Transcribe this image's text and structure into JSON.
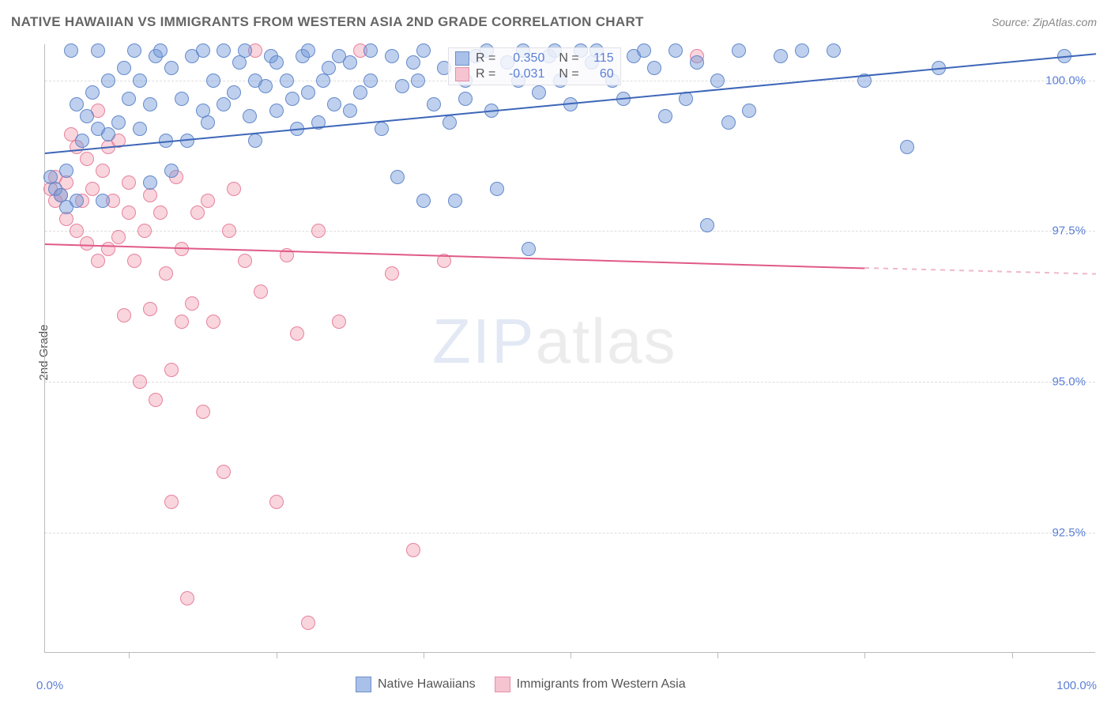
{
  "title": "NATIVE HAWAIIAN VS IMMIGRANTS FROM WESTERN ASIA 2ND GRADE CORRELATION CHART",
  "source": "Source: ZipAtlas.com",
  "ylabel": "2nd Grade",
  "watermark": {
    "zip": "ZIP",
    "atlas": "atlas"
  },
  "chart": {
    "type": "scatter",
    "xlim": [
      0,
      100
    ],
    "ylim": [
      90.5,
      100.6
    ],
    "yticks": [
      92.5,
      95.0,
      97.5,
      100.0
    ],
    "ytick_labels": [
      "92.5%",
      "95.0%",
      "97.5%",
      "100.0%"
    ],
    "xtick_marks": [
      8,
      22,
      36,
      50,
      64,
      78,
      92
    ],
    "xaxis_labels": {
      "left": "0.0%",
      "right": "100.0%"
    },
    "background_color": "#ffffff",
    "grid_color": "#dddddd",
    "marker_radius": 9,
    "series_a": {
      "name": "Native Hawaiians",
      "fill": "rgba(110,150,215,0.45)",
      "stroke": "#5a82c8",
      "swatch_fill": "#a9c0e8",
      "swatch_border": "#6f8fc8",
      "R": "0.350",
      "N": "115",
      "trend": {
        "x0": 0,
        "y0": 98.8,
        "x1": 100,
        "y1": 100.45,
        "color": "#3e66b8",
        "width": 2,
        "dash": false
      },
      "points": [
        [
          0.5,
          98.4
        ],
        [
          1,
          98.2
        ],
        [
          1.5,
          98.1
        ],
        [
          2,
          98.5
        ],
        [
          2,
          97.9
        ],
        [
          2.5,
          100.5
        ],
        [
          3,
          99.6
        ],
        [
          3,
          98.0
        ],
        [
          3.5,
          99.0
        ],
        [
          4,
          99.4
        ],
        [
          4.5,
          99.8
        ],
        [
          5,
          100.5
        ],
        [
          5,
          99.2
        ],
        [
          5.5,
          98.0
        ],
        [
          6,
          100.0
        ],
        [
          6,
          99.1
        ],
        [
          7,
          99.3
        ],
        [
          7.5,
          100.2
        ],
        [
          8,
          99.7
        ],
        [
          8.5,
          100.5
        ],
        [
          9,
          99.2
        ],
        [
          9,
          100.0
        ],
        [
          10,
          98.3
        ],
        [
          10,
          99.6
        ],
        [
          10.5,
          100.4
        ],
        [
          11,
          100.5
        ],
        [
          11.5,
          99.0
        ],
        [
          12,
          98.5
        ],
        [
          12,
          100.2
        ],
        [
          13,
          99.7
        ],
        [
          13.5,
          99.0
        ],
        [
          14,
          100.4
        ],
        [
          15,
          100.5
        ],
        [
          15,
          99.5
        ],
        [
          15.5,
          99.3
        ],
        [
          16,
          100.0
        ],
        [
          17,
          99.6
        ],
        [
          17,
          100.5
        ],
        [
          18,
          99.8
        ],
        [
          18.5,
          100.3
        ],
        [
          19,
          100.5
        ],
        [
          19.5,
          99.4
        ],
        [
          20,
          100.0
        ],
        [
          20,
          99.0
        ],
        [
          21,
          99.9
        ],
        [
          21.5,
          100.4
        ],
        [
          22,
          100.3
        ],
        [
          22,
          99.5
        ],
        [
          23,
          100.0
        ],
        [
          23.5,
          99.7
        ],
        [
          24,
          99.2
        ],
        [
          24.5,
          100.4
        ],
        [
          25,
          99.8
        ],
        [
          25,
          100.5
        ],
        [
          26,
          99.3
        ],
        [
          26.5,
          100.0
        ],
        [
          27,
          100.2
        ],
        [
          27.5,
          99.6
        ],
        [
          28,
          100.4
        ],
        [
          29,
          99.5
        ],
        [
          29,
          100.3
        ],
        [
          30,
          99.8
        ],
        [
          31,
          100.5
        ],
        [
          31,
          100.0
        ],
        [
          32,
          99.2
        ],
        [
          33,
          100.4
        ],
        [
          33.5,
          98.4
        ],
        [
          34,
          99.9
        ],
        [
          35,
          100.3
        ],
        [
          35.5,
          100.0
        ],
        [
          36,
          98.0
        ],
        [
          36,
          100.5
        ],
        [
          37,
          99.6
        ],
        [
          38,
          100.2
        ],
        [
          38.5,
          99.3
        ],
        [
          39,
          98.0
        ],
        [
          40,
          100.0
        ],
        [
          40,
          99.7
        ],
        [
          41,
          100.4
        ],
        [
          42,
          100.5
        ],
        [
          42.5,
          99.5
        ],
        [
          43,
          98.2
        ],
        [
          44,
          100.3
        ],
        [
          45,
          100.0
        ],
        [
          45.5,
          100.5
        ],
        [
          46,
          97.2
        ],
        [
          47,
          99.8
        ],
        [
          48,
          100.4
        ],
        [
          48.5,
          100.5
        ],
        [
          49,
          100.0
        ],
        [
          50,
          99.6
        ],
        [
          51,
          100.5
        ],
        [
          52,
          100.3
        ],
        [
          52.5,
          100.5
        ],
        [
          54,
          100.0
        ],
        [
          55,
          99.7
        ],
        [
          56,
          100.4
        ],
        [
          57,
          100.5
        ],
        [
          58,
          100.2
        ],
        [
          59,
          99.4
        ],
        [
          60,
          100.5
        ],
        [
          61,
          99.7
        ],
        [
          62,
          100.3
        ],
        [
          63,
          97.6
        ],
        [
          64,
          100.0
        ],
        [
          65,
          99.3
        ],
        [
          66,
          100.5
        ],
        [
          67,
          99.5
        ],
        [
          70,
          100.4
        ],
        [
          72,
          100.5
        ],
        [
          75,
          100.5
        ],
        [
          78,
          100.0
        ],
        [
          82,
          98.9
        ],
        [
          85,
          100.2
        ],
        [
          97,
          100.4
        ]
      ]
    },
    "series_b": {
      "name": "Immigrants from Western Asia",
      "fill": "rgba(240,150,170,0.40)",
      "stroke": "#e47896",
      "swatch_fill": "#f5c4d0",
      "swatch_border": "#e58fa8",
      "R": "-0.031",
      "N": "60",
      "trend_solid": {
        "x0": 0,
        "y0": 97.3,
        "x1": 78,
        "y1": 96.9,
        "color": "#e05a88",
        "width": 2
      },
      "trend_dash": {
        "x0": 78,
        "y0": 96.9,
        "x1": 100,
        "y1": 96.8,
        "color": "#f0b8c8",
        "width": 2
      },
      "points": [
        [
          0.5,
          98.2
        ],
        [
          1,
          98.4
        ],
        [
          1,
          98.0
        ],
        [
          1.5,
          98.1
        ],
        [
          2,
          97.7
        ],
        [
          2,
          98.3
        ],
        [
          2.5,
          99.1
        ],
        [
          3,
          98.9
        ],
        [
          3,
          97.5
        ],
        [
          3.5,
          98.0
        ],
        [
          4,
          98.7
        ],
        [
          4,
          97.3
        ],
        [
          4.5,
          98.2
        ],
        [
          5,
          99.5
        ],
        [
          5,
          97.0
        ],
        [
          5.5,
          98.5
        ],
        [
          6,
          98.9
        ],
        [
          6,
          97.2
        ],
        [
          6.5,
          98.0
        ],
        [
          7,
          97.4
        ],
        [
          7,
          99.0
        ],
        [
          7.5,
          96.1
        ],
        [
          8,
          97.8
        ],
        [
          8,
          98.3
        ],
        [
          8.5,
          97.0
        ],
        [
          9,
          95.0
        ],
        [
          9.5,
          97.5
        ],
        [
          10,
          96.2
        ],
        [
          10,
          98.1
        ],
        [
          10.5,
          94.7
        ],
        [
          11,
          97.8
        ],
        [
          11.5,
          96.8
        ],
        [
          12,
          95.2
        ],
        [
          12,
          93.0
        ],
        [
          12.5,
          98.4
        ],
        [
          13,
          97.2
        ],
        [
          13,
          96.0
        ],
        [
          13.5,
          91.4
        ],
        [
          14,
          96.3
        ],
        [
          14.5,
          97.8
        ],
        [
          15,
          94.5
        ],
        [
          15.5,
          98.0
        ],
        [
          16,
          96.0
        ],
        [
          17,
          93.5
        ],
        [
          17.5,
          97.5
        ],
        [
          18,
          98.2
        ],
        [
          19,
          97.0
        ],
        [
          20,
          100.5
        ],
        [
          20.5,
          96.5
        ],
        [
          22,
          93.0
        ],
        [
          23,
          97.1
        ],
        [
          24,
          95.8
        ],
        [
          25,
          91.0
        ],
        [
          26,
          97.5
        ],
        [
          28,
          96.0
        ],
        [
          30,
          100.5
        ],
        [
          33,
          96.8
        ],
        [
          35,
          92.2
        ],
        [
          38,
          97.0
        ],
        [
          62,
          100.4
        ]
      ]
    }
  },
  "legend_top": {
    "R_label": "R =",
    "N_label": "N ="
  },
  "legend_bottom": {
    "a": "Native Hawaiians",
    "b": "Immigrants from Western Asia"
  }
}
